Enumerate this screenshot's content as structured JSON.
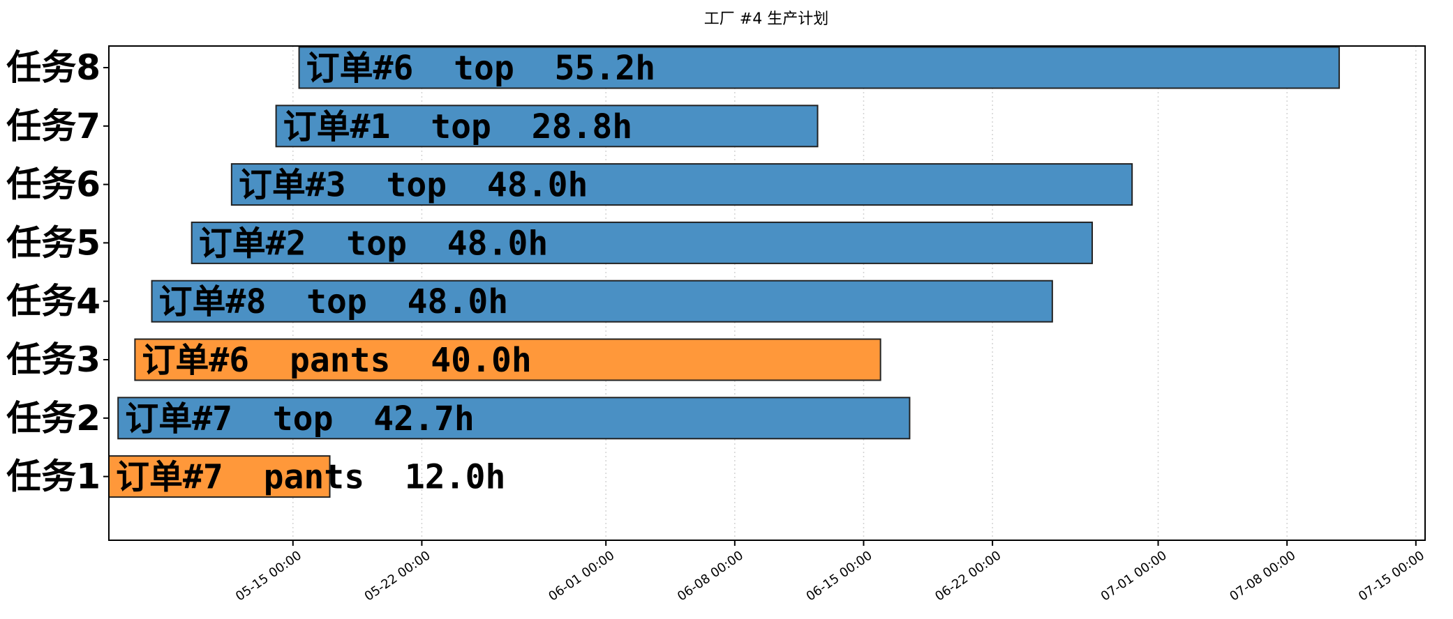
{
  "chart_data": {
    "type": "bar",
    "orientation": "horizontal-gantt",
    "title": "工厂 #4 生产计划",
    "xlabel": "",
    "ylabel": "",
    "xlim": [
      "2025-05-05 00:00",
      "2025-07-15 12:00"
    ],
    "x_ticks": [
      "05-15 00:00",
      "05-22 00:00",
      "06-01 00:00",
      "06-08 00:00",
      "06-15 00:00",
      "06-22 00:00",
      "07-01 00:00",
      "07-08 00:00",
      "07-15 00:00"
    ],
    "x_tick_dates": [
      "2025-05-15 00:00",
      "2025-05-22 00:00",
      "2025-06-01 00:00",
      "2025-06-08 00:00",
      "2025-06-15 00:00",
      "2025-06-22 00:00",
      "2025-07-01 00:00",
      "2025-07-08 00:00",
      "2025-07-15 00:00"
    ],
    "grid": "x-dotted",
    "legend": "none",
    "colors": {
      "top": "#4a90c4",
      "pants": "#ff983a",
      "edge": "#222222",
      "grid": "#d3d3d3"
    },
    "categories": [
      "任务1",
      "任务2",
      "任务3",
      "任务4",
      "任务5",
      "任务6",
      "任务7",
      "任务8"
    ],
    "tasks": [
      {
        "task": "任务1",
        "start": "2025-05-05 00:00",
        "end": "2025-05-17 00:00",
        "label": "订单#7  pants  12.0h",
        "product": "pants"
      },
      {
        "task": "任务2",
        "start": "2025-05-05 12:00",
        "end": "2025-06-17 12:00",
        "label": "订单#7  top  42.7h",
        "product": "top"
      },
      {
        "task": "任务3",
        "start": "2025-05-06 10:00",
        "end": "2025-06-15 22:00",
        "label": "订单#6  pants  40.0h",
        "product": "pants"
      },
      {
        "task": "任务4",
        "start": "2025-05-07 08:00",
        "end": "2025-06-25 06:00",
        "label": "订单#8  top  48.0h",
        "product": "top"
      },
      {
        "task": "任务5",
        "start": "2025-05-09 12:00",
        "end": "2025-06-27 10:00",
        "label": "订单#2  top  48.0h",
        "product": "top"
      },
      {
        "task": "任务6",
        "start": "2025-05-11 16:00",
        "end": "2025-06-29 14:00",
        "label": "订单#3  top  48.0h",
        "product": "top"
      },
      {
        "task": "任务7",
        "start": "2025-05-14 02:00",
        "end": "2025-06-12 12:00",
        "label": "订单#1  top  28.8h",
        "product": "top"
      },
      {
        "task": "任务8",
        "start": "2025-05-15 08:00",
        "end": "2025-07-10 20:00",
        "label": "订单#6  top  55.2h",
        "product": "top"
      }
    ]
  }
}
